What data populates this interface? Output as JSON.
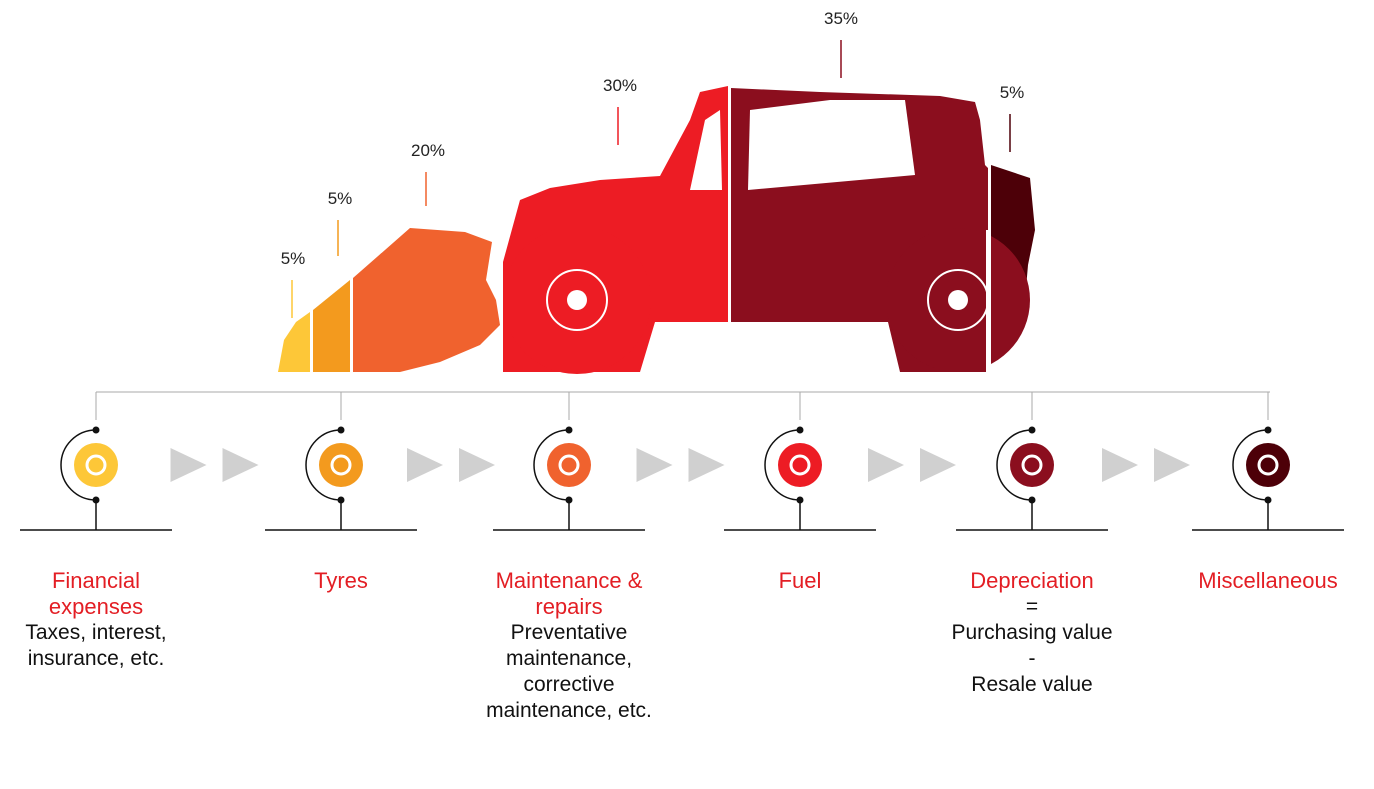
{
  "segments": [
    {
      "label": "5%",
      "color": "#fdc738"
    },
    {
      "label": "5%",
      "color": "#f39a1e"
    },
    {
      "label": "20%",
      "color": "#f0622e"
    },
    {
      "label": "30%",
      "color": "#ed1c24"
    },
    {
      "label": "35%",
      "color": "#8b0e1e"
    },
    {
      "label": "5%",
      "color": "#4d0008"
    }
  ],
  "categories": [
    {
      "title": "Financial expenses",
      "description": [
        "Taxes, interest, insurance, etc."
      ]
    },
    {
      "title": "Tyres",
      "description": []
    },
    {
      "title": "Maintenance & repairs",
      "description": [
        "Preventative maintenance, corrective maintenance, etc."
      ]
    },
    {
      "title": "Fuel",
      "description": []
    },
    {
      "title": "Depreciation",
      "description": [
        "=",
        "Purchasing value",
        "-",
        "Resale value"
      ]
    },
    {
      "title": "Miscellaneous",
      "description": []
    }
  ]
}
